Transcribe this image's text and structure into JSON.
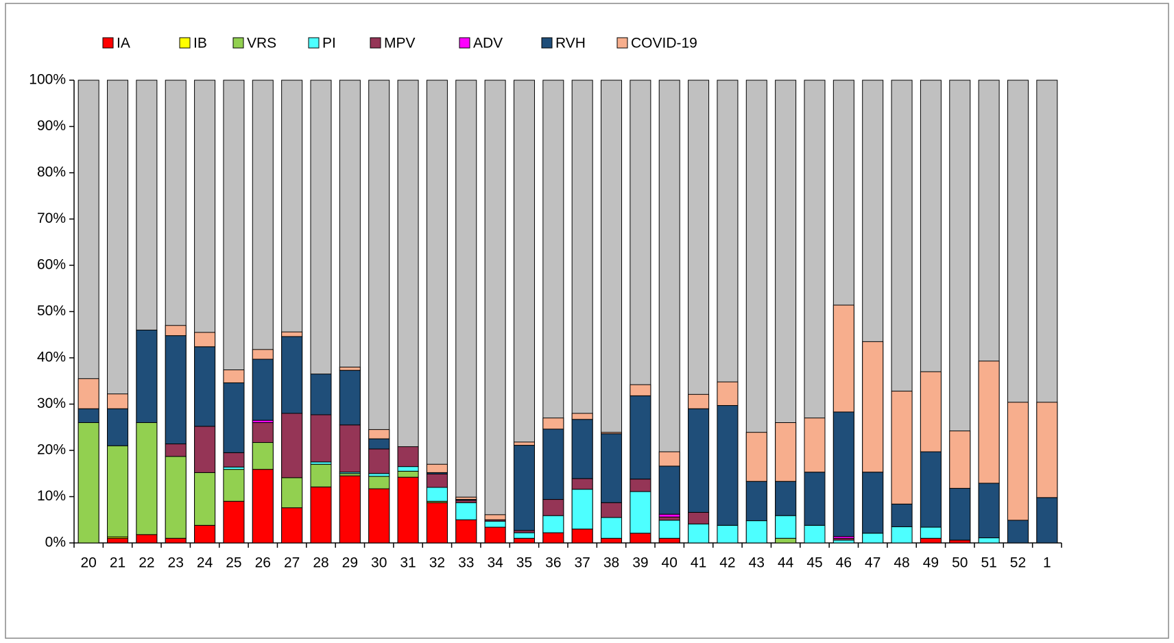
{
  "chart_data": {
    "type": "bar",
    "stacked": true,
    "categories": [
      "20",
      "21",
      "22",
      "23",
      "24",
      "25",
      "26",
      "27",
      "28",
      "29",
      "30",
      "31",
      "32",
      "33",
      "34",
      "35",
      "36",
      "37",
      "38",
      "39",
      "40",
      "41",
      "42",
      "43",
      "44",
      "45",
      "46",
      "47",
      "48",
      "49",
      "50",
      "51",
      "52",
      "1"
    ],
    "series": [
      {
        "name": "IA",
        "color": "#ff0000",
        "values": [
          0,
          1,
          1.8,
          1,
          3.8,
          9,
          15.9,
          7.6,
          12.1,
          14.5,
          11.7,
          14.2,
          8.7,
          5,
          3.4,
          1,
          2.2,
          3,
          1,
          2.1,
          1,
          0,
          0,
          0,
          0,
          0,
          0,
          0,
          0,
          1,
          0.6,
          0,
          0,
          0
        ]
      },
      {
        "name": "IB",
        "color": "#ffff00",
        "values": [
          0,
          0.3,
          0,
          0,
          0,
          0,
          0,
          0,
          0,
          0,
          0,
          0,
          0,
          0,
          0,
          0,
          0,
          0,
          0,
          0,
          0,
          0,
          0,
          0,
          0,
          0,
          0,
          0,
          0,
          0,
          0,
          0,
          0,
          0
        ]
      },
      {
        "name": "VRS",
        "color": "#92d050",
        "values": [
          26,
          19.7,
          24.2,
          17.7,
          11.4,
          6.9,
          5.8,
          6.5,
          4.9,
          0.5,
          2.7,
          1.3,
          0.3,
          0,
          0,
          0,
          0,
          0,
          0,
          0,
          0,
          0,
          0,
          0,
          1,
          0,
          0,
          0,
          0,
          0,
          0,
          0,
          0,
          0
        ]
      },
      {
        "name": "PI",
        "color": "#4dffff",
        "values": [
          0,
          0,
          0,
          0,
          0,
          0.5,
          0,
          0,
          0.5,
          0.3,
          0.6,
          1,
          3,
          3.7,
          1.3,
          1.2,
          3.7,
          8.6,
          4.5,
          9,
          3.9,
          4.1,
          3.8,
          4.8,
          4.9,
          3.8,
          0.6,
          2.1,
          3.5,
          2.4,
          0,
          1.1,
          0,
          0
        ]
      },
      {
        "name": "MPV",
        "color": "#953556",
        "values": [
          0,
          0,
          0,
          2.7,
          10,
          3.1,
          4.3,
          13.9,
          10.2,
          10.2,
          5.3,
          4.3,
          2.9,
          0.5,
          0.3,
          0.5,
          3.5,
          2.3,
          3.2,
          2.7,
          0.7,
          2.5,
          0,
          0,
          0,
          0,
          0.4,
          0,
          0,
          0,
          0,
          0,
          0,
          0
        ]
      },
      {
        "name": "ADV",
        "color": "#ff00ff",
        "values": [
          0,
          0,
          0,
          0,
          0,
          0,
          0.5,
          0,
          0,
          0,
          0,
          0,
          0,
          0,
          0,
          0,
          0,
          0,
          0,
          0,
          0.6,
          0,
          0,
          0,
          0,
          0,
          0.4,
          0,
          0,
          0,
          0,
          0,
          0,
          0
        ]
      },
      {
        "name": "RVH",
        "color": "#1f4e79",
        "values": [
          3,
          8,
          20,
          23.4,
          17.2,
          15.1,
          13.2,
          16.6,
          8.8,
          11.8,
          2.2,
          0,
          0.3,
          0.2,
          0,
          18.4,
          15.2,
          12.8,
          14.9,
          18,
          10.4,
          22.4,
          25.9,
          8.5,
          7.4,
          11.5,
          26.9,
          13.2,
          4.9,
          16.3,
          11.2,
          11.8,
          4.9,
          9.8
        ]
      },
      {
        "name": "COVID-19",
        "color": "#f7ae8d",
        "values": [
          6.5,
          3.2,
          0,
          2.2,
          3.1,
          2.8,
          2.1,
          1,
          0,
          0.7,
          2,
          0,
          1.8,
          0.5,
          1.1,
          0.7,
          2.4,
          1.3,
          0.3,
          2.4,
          3.1,
          3.1,
          5.1,
          10.6,
          12.7,
          11.7,
          23.1,
          28.2,
          24.4,
          17.3,
          12.4,
          26.4,
          25.5,
          20.6
        ]
      }
    ],
    "remainder_color": "#c0c0c0",
    "ylim": [
      0,
      100
    ],
    "yticks": [
      {
        "value": 0,
        "label": "0%"
      },
      {
        "value": 10,
        "label": "10%"
      },
      {
        "value": 20,
        "label": "20%"
      },
      {
        "value": 30,
        "label": "30%"
      },
      {
        "value": 40,
        "label": "40%"
      },
      {
        "value": 50,
        "label": "50%"
      },
      {
        "value": 60,
        "label": "60%"
      },
      {
        "value": 70,
        "label": "70%"
      },
      {
        "value": 80,
        "label": "80%"
      },
      {
        "value": 90,
        "label": "90%"
      },
      {
        "value": 100,
        "label": "100%"
      }
    ],
    "legend": "top"
  }
}
